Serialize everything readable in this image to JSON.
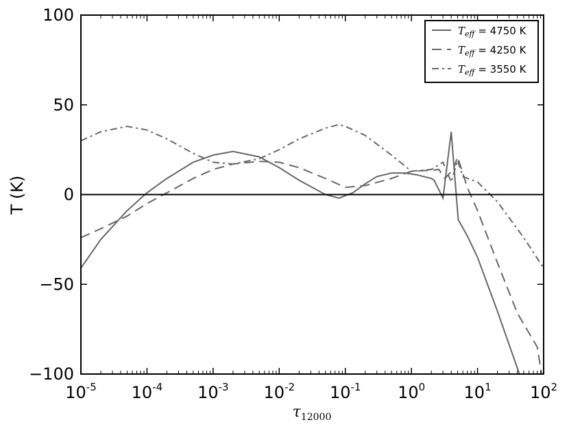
{
  "chart_data": {
    "type": "line",
    "xlabel": "τ",
    "xlabel_sub": "12000",
    "ylabel": "T (K)",
    "xscale": "log",
    "xlim": [
      1e-05,
      100
    ],
    "ylim": [
      -100,
      100
    ],
    "x_ticks": [
      {
        "value": 1e-05,
        "base": "10",
        "exp": "-5"
      },
      {
        "value": 0.0001,
        "base": "10",
        "exp": "-4"
      },
      {
        "value": 0.001,
        "base": "10",
        "exp": "-3"
      },
      {
        "value": 0.01,
        "base": "10",
        "exp": "-2"
      },
      {
        "value": 0.1,
        "base": "10",
        "exp": "-1"
      },
      {
        "value": 1,
        "base": "10",
        "exp": "0"
      },
      {
        "value": 10,
        "base": "10",
        "exp": "1"
      },
      {
        "value": 100,
        "base": "10",
        "exp": "2"
      }
    ],
    "y_ticks": [
      {
        "value": 100,
        "label": "100"
      },
      {
        "value": 50,
        "label": "50"
      },
      {
        "value": 0,
        "label": "0"
      },
      {
        "value": -50,
        "label": "−50"
      },
      {
        "value": -100,
        "label": "−100"
      }
    ],
    "zero_line": true,
    "grid": false,
    "legend_position": "top-right",
    "series": [
      {
        "name": "= 4750 K",
        "legend_var": "T",
        "legend_sub": "eff",
        "color": "#666666",
        "dash": "solid",
        "x": [
          1e-05,
          2e-05,
          5e-05,
          0.0001,
          0.0002,
          0.0005,
          0.001,
          0.002,
          0.005,
          0.01,
          0.02,
          0.05,
          0.08,
          0.13,
          0.2,
          0.3,
          0.5,
          0.8,
          1.2,
          2,
          2.2,
          3.0,
          4.0,
          5.1,
          7,
          10,
          20,
          43,
          50
        ],
        "y": [
          -41,
          -25,
          -9,
          1,
          9,
          18,
          22,
          24,
          21,
          15,
          8,
          0,
          -2,
          1,
          6,
          10,
          12,
          12,
          11,
          9,
          8,
          -2,
          35,
          -14,
          -23,
          -35,
          -65,
          -100,
          -107
        ]
      },
      {
        "name": "= 4250 K",
        "legend_var": "T",
        "legend_sub": "eff",
        "color": "#666666",
        "dash": "14,8",
        "x": [
          1e-05,
          2e-05,
          5e-05,
          0.0001,
          0.0002,
          0.0005,
          0.001,
          0.002,
          0.005,
          0.01,
          0.02,
          0.05,
          0.1,
          0.2,
          0.5,
          1,
          2,
          2.6,
          3.2,
          4.3,
          5,
          7,
          10,
          20,
          40,
          80,
          100
        ],
        "y": [
          -24,
          -19,
          -12,
          -5,
          1,
          9,
          14,
          17,
          18.5,
          18,
          15,
          9,
          4,
          5,
          9,
          13,
          13.5,
          14,
          9,
          14,
          21,
          4,
          -9,
          -38,
          -66,
          -85,
          -107
        ]
      },
      {
        "name": "= 3550 K",
        "legend_var": "T",
        "legend_sub": "eff",
        "color": "#666666",
        "dash": "10,5,3,5",
        "x": [
          1e-05,
          2e-05,
          5e-05,
          0.0001,
          0.0002,
          0.0005,
          0.001,
          0.002,
          0.005,
          0.01,
          0.02,
          0.05,
          0.08,
          0.1,
          0.2,
          0.5,
          1,
          2,
          3,
          4,
          5,
          6,
          10,
          20,
          50,
          100
        ],
        "y": [
          30,
          35,
          38,
          36,
          31,
          23,
          18,
          17,
          20,
          25,
          31,
          37,
          39,
          38,
          33,
          22,
          13,
          14,
          18,
          7,
          19,
          10,
          7,
          -4,
          -24,
          -41
        ]
      }
    ]
  }
}
